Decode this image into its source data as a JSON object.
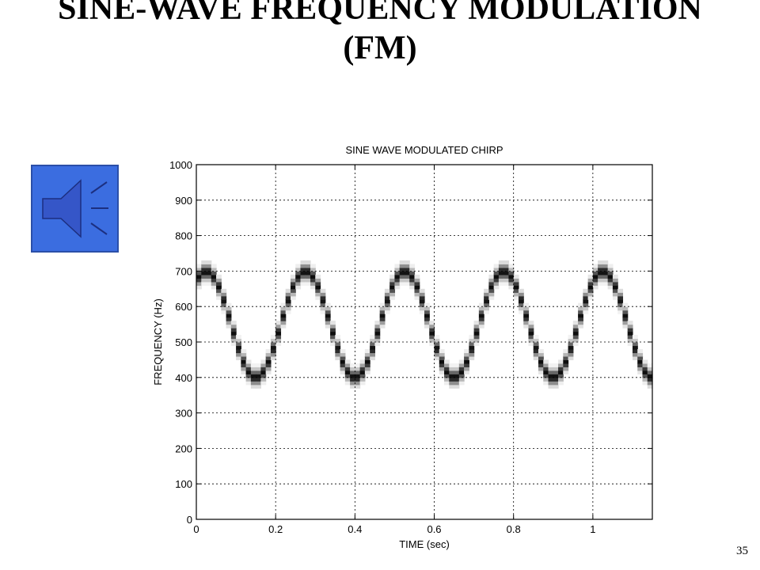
{
  "slide": {
    "title_line1": "SINE-WAVE FREQUENCY MODULATION",
    "title_line2": "(FM)",
    "page_number": "35"
  },
  "audio_button": {
    "icon": "speaker-icon",
    "color": "#3b6de0"
  },
  "chart_data": {
    "type": "heatmap",
    "title": "SINE WAVE MODULATED CHIRP",
    "xlabel": "TIME (sec)",
    "ylabel": "FREQUENCY (Hz)",
    "xlim": [
      0,
      1.15
    ],
    "ylim": [
      0,
      1000
    ],
    "xticks": [
      0,
      0.2,
      0.4,
      0.6,
      0.8,
      1
    ],
    "xtick_labels": [
      "0",
      "0.2",
      "0.4",
      "0.6",
      "0.8",
      "1"
    ],
    "yticks": [
      0,
      100,
      200,
      300,
      400,
      500,
      600,
      700,
      800,
      900,
      1000
    ],
    "ytick_labels": [
      "0",
      "100",
      "200",
      "300",
      "400",
      "500",
      "600",
      "700",
      "800",
      "900",
      "1000"
    ],
    "grid": true,
    "series": [
      {
        "center_frequency_hz": 550,
        "frequency_deviation_hz": 150,
        "modulation_period_sec": 0.25,
        "peak_times_sec": [
          0.025,
          0.275,
          0.525,
          0.775,
          1.025
        ],
        "trough_times_sec": [
          0.15,
          0.4,
          0.65,
          0.9,
          1.15
        ],
        "peak_frequency_hz": 700,
        "trough_frequency_hz": 400,
        "band_halfwidth_hz": 35
      }
    ]
  }
}
